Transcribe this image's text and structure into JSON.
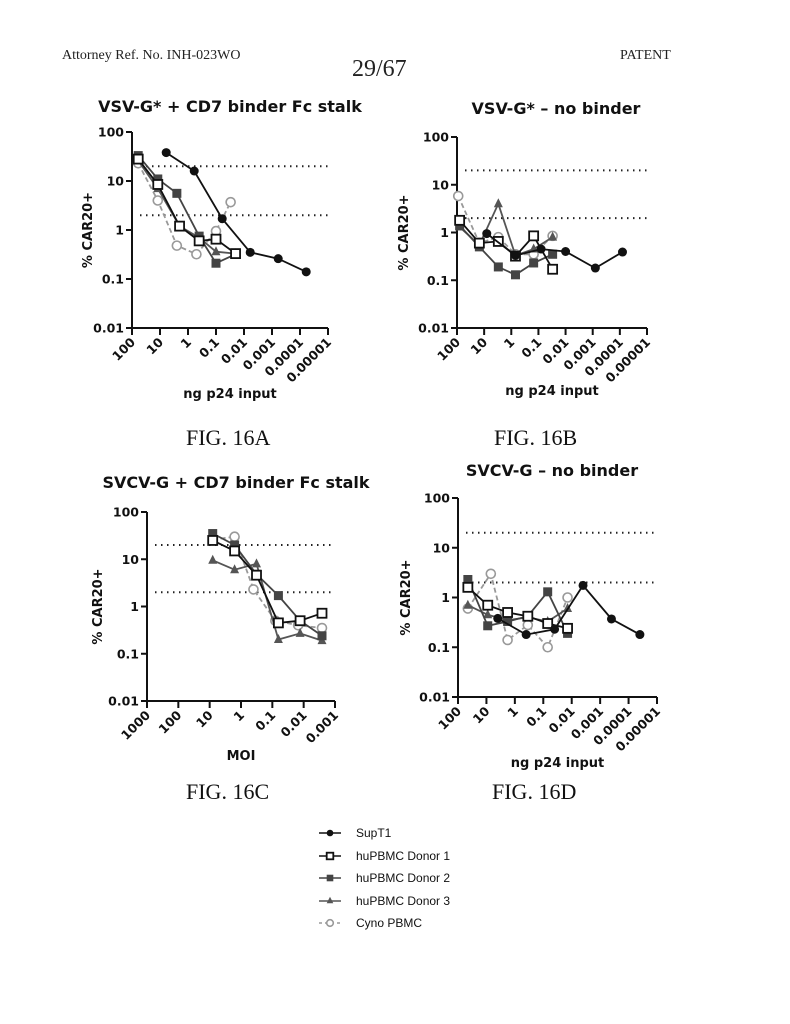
{
  "header": {
    "left": "Attorney Ref. No. INH-023WO",
    "center": "29/67",
    "right": "PATENT"
  },
  "figure_labels": [
    "FIG. 16A",
    "FIG. 16B",
    "FIG. 16C",
    "FIG. 16D"
  ],
  "legend": [
    {
      "name": "SupT1",
      "marker": "filled-circle",
      "color": "#111111",
      "dash": false
    },
    {
      "name": "huPBMC Donor 1",
      "marker": "open-square",
      "color": "#111111",
      "dash": false
    },
    {
      "name": "huPBMC Donor 2",
      "marker": "filled-square",
      "color": "#444444",
      "dash": false
    },
    {
      "name": "huPBMC Donor 3",
      "marker": "filled-triangle",
      "color": "#555555",
      "dash": false
    },
    {
      "name": "Cyno PBMC",
      "marker": "open-circle",
      "color": "#999999",
      "dash": true
    }
  ],
  "chart_data": [
    {
      "type": "line",
      "title": "VSV-G* + CD7 binder Fc stalk",
      "xlabel": "ng p24 input",
      "ylabel": "% CAR20+",
      "xscale": "log-reversed",
      "yscale": "log",
      "xlim": [
        100,
        1e-05
      ],
      "ylim": [
        0.01,
        100
      ],
      "xticks": [
        "100",
        "10",
        "1",
        "0.1",
        "0.01",
        "0.001",
        "0.0001",
        "0.00001"
      ],
      "yticks": [
        "0.01",
        "0.1",
        "1",
        "10",
        "100"
      ],
      "reference_lines": [
        20,
        2
      ],
      "legend": "bottom",
      "series": [
        {
          "name": "SupT1",
          "x": [
            6,
            0.6,
            0.06,
            0.006,
            0.0006,
            6e-05
          ],
          "y": [
            38,
            16,
            1.7,
            0.35,
            0.26,
            0.14
          ]
        },
        {
          "name": "huPBMC Donor 1",
          "x": [
            60,
            12,
            2,
            0.4,
            0.1,
            0.02
          ],
          "y": [
            28,
            8.5,
            1.2,
            0.6,
            0.65,
            0.33
          ]
        },
        {
          "name": "huPBMC Donor 2",
          "x": [
            60,
            12,
            2.5,
            0.4,
            0.1,
            0.02
          ],
          "y": [
            33,
            11,
            5.6,
            0.75,
            0.21,
            0.32
          ]
        },
        {
          "name": "huPBMC Donor 3",
          "x": [
            60,
            12,
            2,
            0.4,
            0.1,
            0.02
          ],
          "y": [
            26,
            7,
            1.2,
            0.7,
            0.36,
            0.33
          ]
        },
        {
          "name": "Cyno PBMC",
          "x": [
            60,
            12,
            2.5,
            0.5,
            0.1,
            0.03
          ],
          "y": [
            23,
            4,
            0.48,
            0.32,
            0.95,
            3.7
          ]
        }
      ]
    },
    {
      "type": "line",
      "title": "VSV-G* – no binder",
      "xlabel": "ng p24 input",
      "ylabel": "% CAR20+",
      "xscale": "log-reversed",
      "yscale": "log",
      "xlim": [
        100,
        1e-05
      ],
      "ylim": [
        0.01,
        100
      ],
      "xticks": [
        "100",
        "10",
        "1",
        "0.1",
        "0.01",
        "0.001",
        "0.0001",
        "0.00001"
      ],
      "yticks": [
        "0.01",
        "0.1",
        "1",
        "10",
        "100"
      ],
      "reference_lines": [
        20,
        2
      ],
      "legend": "bottom",
      "series": [
        {
          "name": "SupT1",
          "x": [
            8,
            0.7,
            0.08,
            0.01,
            0.0008,
            8e-05
          ],
          "y": [
            0.95,
            0.33,
            0.45,
            0.4,
            0.18,
            0.39
          ]
        },
        {
          "name": "huPBMC Donor 1",
          "x": [
            80,
            15,
            3,
            0.7,
            0.15,
            0.03
          ],
          "y": [
            1.8,
            0.6,
            0.65,
            0.32,
            0.85,
            0.17
          ]
        },
        {
          "name": "huPBMC Donor 2",
          "x": [
            80,
            15,
            3,
            0.7,
            0.15,
            0.03
          ],
          "y": [
            1.4,
            0.5,
            0.19,
            0.13,
            0.23,
            0.35
          ]
        },
        {
          "name": "huPBMC Donor 3",
          "x": [
            80,
            15,
            3,
            0.7,
            0.15,
            0.03
          ],
          "y": [
            1.3,
            0.55,
            4,
            0.33,
            0.45,
            0.8
          ]
        },
        {
          "name": "Cyno PBMC",
          "x": [
            90,
            15,
            3,
            0.7,
            0.15,
            0.03
          ],
          "y": [
            5.8,
            0.6,
            0.8,
            0.35,
            0.35,
            0.85
          ]
        }
      ]
    },
    {
      "type": "line",
      "title": "SVCV-G + CD7 binder Fc stalk",
      "xlabel": "MOI",
      "ylabel": "% CAR20+",
      "xscale": "log-reversed",
      "yscale": "log",
      "xlim": [
        1000,
        0.001
      ],
      "ylim": [
        0.01,
        100
      ],
      "xticks": [
        "1000",
        "100",
        "10",
        "1",
        "0.1",
        "0.01",
        "0.001"
      ],
      "yticks": [
        "0.01",
        "0.1",
        "1",
        "10",
        "100"
      ],
      "reference_lines": [
        20,
        2
      ],
      "legend": "bottom",
      "series": [
        {
          "name": "huPBMC Donor 1",
          "x": [
            8,
            1.6,
            0.32,
            0.064,
            0.013,
            0.0026
          ],
          "y": [
            25,
            15,
            4.6,
            0.45,
            0.5,
            0.72
          ]
        },
        {
          "name": "huPBMC Donor 2",
          "x": [
            8,
            1.6,
            0.32,
            0.064,
            0.013,
            0.0026
          ],
          "y": [
            35,
            20,
            4.8,
            1.7,
            0.5,
            0.24
          ]
        },
        {
          "name": "huPBMC Donor 3",
          "x": [
            8,
            1.6,
            0.32,
            0.064,
            0.013,
            0.0026
          ],
          "y": [
            9.5,
            6,
            8,
            0.2,
            0.27,
            0.19
          ]
        },
        {
          "name": "Cyno PBMC",
          "x": [
            8,
            1.6,
            0.4,
            0.08,
            0.015,
            0.0026
          ],
          "y": [
            26,
            30,
            2.3,
            0.5,
            0.4,
            0.35
          ]
        }
      ]
    },
    {
      "type": "line",
      "title": "SVCV-G – no binder",
      "xlabel": "ng p24 input",
      "ylabel": "% CAR20+",
      "xscale": "log-reversed",
      "yscale": "log",
      "xlim": [
        100,
        1e-05
      ],
      "ylim": [
        0.01,
        100
      ],
      "xticks": [
        "100",
        "10",
        "1",
        "0.1",
        "0.01",
        "0.001",
        "0.0001",
        "0.00001"
      ],
      "yticks": [
        "0.01",
        "0.1",
        "1",
        "10",
        "100"
      ],
      "reference_lines": [
        20,
        2
      ],
      "legend": "bottom",
      "series": [
        {
          "name": "SupT1",
          "x": [
            4,
            0.4,
            0.04,
            0.004,
            0.0004,
            4e-05
          ],
          "y": [
            0.38,
            0.18,
            0.23,
            1.75,
            0.37,
            0.18
          ]
        },
        {
          "name": "huPBMC Donor 1",
          "x": [
            45,
            9,
            1.8,
            0.35,
            0.07,
            0.014
          ],
          "y": [
            1.6,
            0.7,
            0.5,
            0.42,
            0.3,
            0.24
          ]
        },
        {
          "name": "huPBMC Donor 2",
          "x": [
            45,
            9,
            1.8,
            0.35,
            0.07,
            0.014
          ],
          "y": [
            2.3,
            0.27,
            0.33,
            0.42,
            1.3,
            0.19
          ]
        },
        {
          "name": "huPBMC Donor 3",
          "x": [
            45,
            9,
            1.8,
            0.35,
            0.07,
            0.014
          ],
          "y": [
            0.7,
            0.45,
            0.35,
            0.4,
            0.33,
            0.6
          ]
        },
        {
          "name": "Cyno PBMC",
          "x": [
            45,
            7,
            1.8,
            0.35,
            0.07,
            0.014
          ],
          "y": [
            0.6,
            3,
            0.14,
            0.28,
            0.1,
            1.0
          ]
        }
      ]
    }
  ]
}
